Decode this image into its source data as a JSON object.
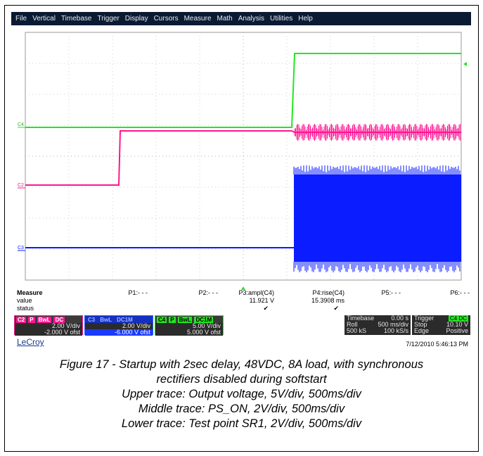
{
  "menu": [
    "File",
    "Vertical",
    "Timebase",
    "Trigger",
    "Display",
    "Cursors",
    "Measure",
    "Math",
    "Analysis",
    "Utilities",
    "Help"
  ],
  "trace_labels": {
    "c4": "C4",
    "c2": "C2",
    "c3": "C3"
  },
  "colors": {
    "c4": "#22e622",
    "c2": "#ff1493",
    "c3": "#0b1cff",
    "menubar": "#0a1a33"
  },
  "measure": {
    "title": "Measure",
    "value_label": "value",
    "status_label": "status",
    "params": [
      {
        "name": "P1:- - -",
        "value": "",
        "status": ""
      },
      {
        "name": "P2:- - -",
        "value": "",
        "status": ""
      },
      {
        "name": "P3:ampl(C4)",
        "value": "11.921 V",
        "status": "✔"
      },
      {
        "name": "P4:rise(C4)",
        "value": "15.3908 ms",
        "status": "✔"
      },
      {
        "name": "P5:- - -",
        "value": "",
        "status": ""
      },
      {
        "name": "P6:- - -",
        "value": "",
        "status": ""
      }
    ]
  },
  "channels": [
    {
      "id": "C2",
      "tags": [
        "P",
        "BwL",
        "DC"
      ],
      "vdiv": "2.00 V/div",
      "offset": "-2.000 V ofst"
    },
    {
      "id": "C3",
      "tags": [
        "",
        "BwL",
        "DC1M"
      ],
      "vdiv": "2.00 V/div",
      "offset": "-6.000 V ofst"
    },
    {
      "id": "C4",
      "tags": [
        "P",
        "BwL",
        "DC1M"
      ],
      "vdiv": "5.00 V/div",
      "offset": "5.000 V ofst"
    }
  ],
  "timebase": {
    "label": "Timebase",
    "delay": "0.00 s",
    "mode": "Roll",
    "tdiv": "500 ms/div",
    "samples": "500 kS",
    "rate": "100 kS/s"
  },
  "trigger": {
    "label": "Trigger",
    "badge": "C4 DC",
    "mode": "Stop",
    "level": "10.10 V",
    "type": "Edge",
    "slope": "Positive"
  },
  "brand": "LeCroy",
  "datetime": "7/12/2010 5:46:13 PM",
  "caption": {
    "line1": "Figure 17 - Startup with 2sec delay, 48VDC, 8A load, with synchronous",
    "line2": "rectifiers disabled during softstart",
    "line3": "Upper trace: Output voltage, 5V/div, 500ms/div",
    "line4": "Middle trace: PS_ON, 2V/div, 500ms/div",
    "line5": "Lower trace: Test point SR1, 2V/div, 500ms/div"
  }
}
